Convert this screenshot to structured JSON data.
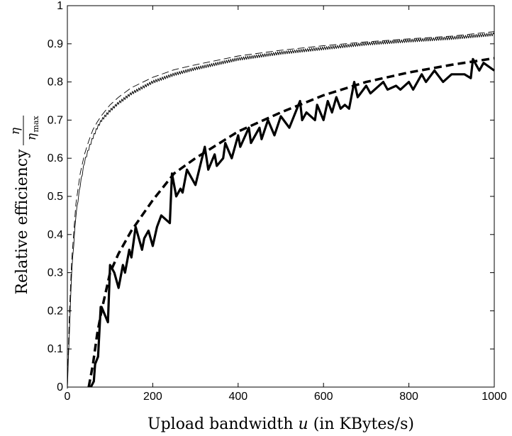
{
  "chart_data": {
    "type": "line",
    "title": "",
    "xlabel_prefix": "Upload bandwidth ",
    "xlabel_var": "u",
    "xlabel_suffix": " (in KBytes/s)",
    "ylabel_prefix": "Relative efficiency ",
    "ylabel_frac_num": "η",
    "ylabel_frac_den": "η",
    "ylabel_frac_den_sub": "max",
    "xlim": [
      0,
      1000
    ],
    "ylim": [
      0,
      1
    ],
    "xticks": [
      0,
      200,
      400,
      600,
      800,
      1000
    ],
    "yticks": [
      0,
      0.1,
      0.2,
      0.3,
      0.4,
      0.5,
      0.6,
      0.7,
      0.8,
      0.9,
      1
    ],
    "grid": false,
    "series": [
      {
        "style": "thin-dashed",
        "x": [
          0,
          5,
          10,
          20,
          30,
          40,
          50,
          60,
          70,
          80,
          100,
          120,
          150,
          200,
          250,
          300,
          400,
          500,
          600,
          700,
          800,
          900,
          1000
        ],
        "y": [
          0,
          0.2,
          0.33,
          0.48,
          0.56,
          0.61,
          0.645,
          0.675,
          0.695,
          0.712,
          0.74,
          0.76,
          0.785,
          0.812,
          0.832,
          0.845,
          0.868,
          0.883,
          0.895,
          0.905,
          0.913,
          0.92,
          0.932
        ]
      },
      {
        "style": "thin-solid-jagged",
        "x": [
          0,
          5,
          10,
          20,
          30,
          40,
          50,
          60,
          70,
          80,
          100,
          120,
          150,
          200,
          250,
          300,
          400,
          500,
          600,
          700,
          800,
          900,
          1000
        ],
        "y": [
          0,
          0.15,
          0.3,
          0.45,
          0.53,
          0.59,
          0.625,
          0.655,
          0.68,
          0.7,
          0.725,
          0.745,
          0.77,
          0.8,
          0.82,
          0.835,
          0.86,
          0.876,
          0.888,
          0.9,
          0.908,
          0.915,
          0.925
        ]
      },
      {
        "style": "thick-dashed",
        "x": [
          50,
          55,
          60,
          65,
          70,
          80,
          90,
          100,
          120,
          150,
          200,
          250,
          300,
          400,
          500,
          600,
          700,
          800,
          900,
          1000
        ],
        "y": [
          0,
          0.03,
          0.06,
          0.1,
          0.14,
          0.2,
          0.25,
          0.3,
          0.35,
          0.41,
          0.49,
          0.56,
          0.6,
          0.67,
          0.72,
          0.765,
          0.8,
          0.825,
          0.845,
          0.862
        ]
      },
      {
        "style": "thick-solid",
        "x": [
          55,
          62,
          65,
          72,
          78,
          80,
          95,
          100,
          110,
          120,
          130,
          135,
          145,
          150,
          160,
          175,
          180,
          190,
          200,
          210,
          220,
          240,
          245,
          255,
          265,
          270,
          280,
          300,
          322,
          330,
          345,
          350,
          365,
          370,
          385,
          400,
          405,
          425,
          430,
          450,
          455,
          470,
          485,
          500,
          520,
          545,
          550,
          560,
          580,
          585,
          600,
          610,
          620,
          630,
          640,
          650,
          660,
          672,
          680,
          700,
          710,
          740,
          750,
          770,
          780,
          800,
          810,
          830,
          840,
          860,
          880,
          900,
          930,
          945,
          950,
          965,
          975,
          1000
        ],
        "y": [
          0,
          0.015,
          0.06,
          0.08,
          0.21,
          0.21,
          0.17,
          0.32,
          0.3,
          0.26,
          0.32,
          0.3,
          0.36,
          0.34,
          0.42,
          0.36,
          0.39,
          0.41,
          0.37,
          0.42,
          0.45,
          0.43,
          0.56,
          0.5,
          0.52,
          0.51,
          0.57,
          0.53,
          0.63,
          0.57,
          0.61,
          0.58,
          0.6,
          0.64,
          0.6,
          0.66,
          0.63,
          0.68,
          0.64,
          0.68,
          0.65,
          0.7,
          0.66,
          0.71,
          0.68,
          0.75,
          0.7,
          0.72,
          0.7,
          0.74,
          0.7,
          0.75,
          0.72,
          0.76,
          0.73,
          0.74,
          0.73,
          0.8,
          0.76,
          0.79,
          0.77,
          0.8,
          0.78,
          0.79,
          0.78,
          0.8,
          0.78,
          0.82,
          0.8,
          0.83,
          0.8,
          0.82,
          0.82,
          0.81,
          0.86,
          0.83,
          0.85,
          0.83
        ]
      }
    ]
  }
}
